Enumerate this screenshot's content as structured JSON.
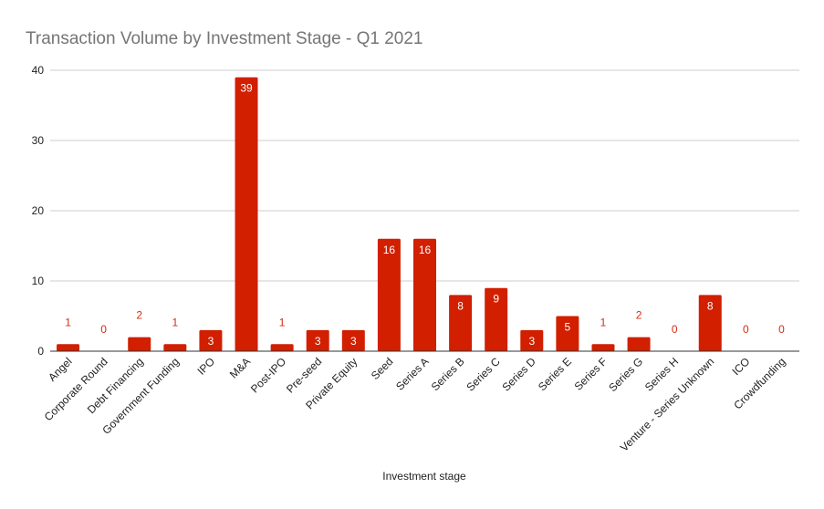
{
  "chart_data": {
    "type": "bar",
    "title": "Transaction Volume by Investment Stage - Q1 2021",
    "xlabel": "Investment stage",
    "ylabel": "",
    "ylim": [
      0,
      40
    ],
    "yticks": [
      0,
      10,
      20,
      30,
      40
    ],
    "grid": true,
    "legend": "none",
    "bar_color": "#d11f00",
    "label_inside_color": "#ffffff",
    "label_outside_color": "#d12c14",
    "categories": [
      "Angel",
      "Corporate Round",
      "Debt Financing",
      "Government Funding",
      "IPO",
      "M&A",
      "Post-IPO",
      "Pre-seed",
      "Private Equity",
      "Seed",
      "Series A",
      "Series B",
      "Series C",
      "Series D",
      "Series E",
      "Series F",
      "Series G",
      "Series H",
      "Venture - Series Unknown",
      "ICO",
      "Crowdfunding"
    ],
    "values": [
      1,
      0,
      2,
      1,
      3,
      39,
      1,
      3,
      3,
      16,
      16,
      8,
      9,
      3,
      5,
      1,
      2,
      0,
      8,
      0,
      0
    ]
  }
}
